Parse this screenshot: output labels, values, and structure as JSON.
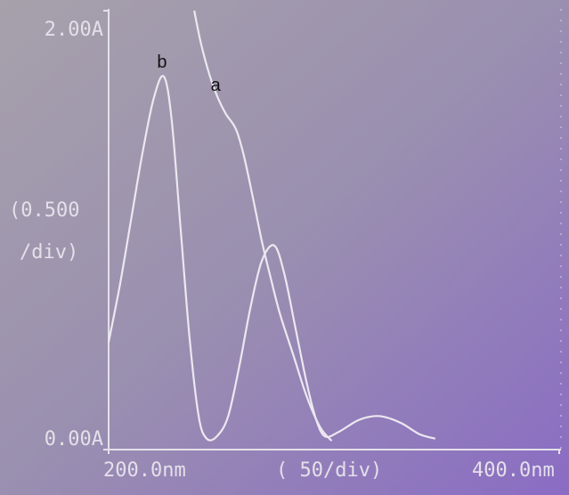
{
  "chart_data": {
    "type": "line",
    "xlim": [
      200,
      400
    ],
    "ylim": [
      0,
      2
    ],
    "xticks": [
      {
        "value": 200,
        "label": "200.0nm"
      },
      {
        "value": 400,
        "label": "400.0nm"
      }
    ],
    "yticks": [
      {
        "value": 0,
        "label": "0.00A"
      },
      {
        "value": 2,
        "label": "2.00A"
      }
    ],
    "x_scale_label": "( 50/div)",
    "y_scale_label": [
      "(0.500",
      "/div)"
    ],
    "series": [
      {
        "name": "a",
        "color": "#ece8f0",
        "x": [
          238,
          241,
          245,
          248.6,
          252,
          256.5,
          260,
          264,
          268,
          272,
          276,
          282,
          288,
          294,
          299
        ],
        "values": [
          2.0,
          1.85,
          1.7,
          1.6,
          1.53,
          1.46,
          1.34,
          1.15,
          0.95,
          0.78,
          0.62,
          0.43,
          0.24,
          0.1,
          0.04
        ]
      },
      {
        "name": "b",
        "color": "#ece8f0",
        "x": [
          200,
          205,
          210,
          215,
          220,
          224.5,
          228,
          232,
          236,
          240,
          243.5,
          248,
          253,
          258,
          263,
          268,
          273.5,
          278,
          283,
          288,
          292,
          296,
          302,
          310,
          316,
          322,
          330,
          338,
          345
        ],
        "values": [
          0.49,
          0.75,
          1.05,
          1.35,
          1.6,
          1.7,
          1.5,
          1.0,
          0.5,
          0.15,
          0.05,
          0.06,
          0.15,
          0.38,
          0.65,
          0.86,
          0.93,
          0.8,
          0.55,
          0.3,
          0.14,
          0.06,
          0.08,
          0.13,
          0.15,
          0.15,
          0.12,
          0.07,
          0.05
        ]
      }
    ]
  }
}
